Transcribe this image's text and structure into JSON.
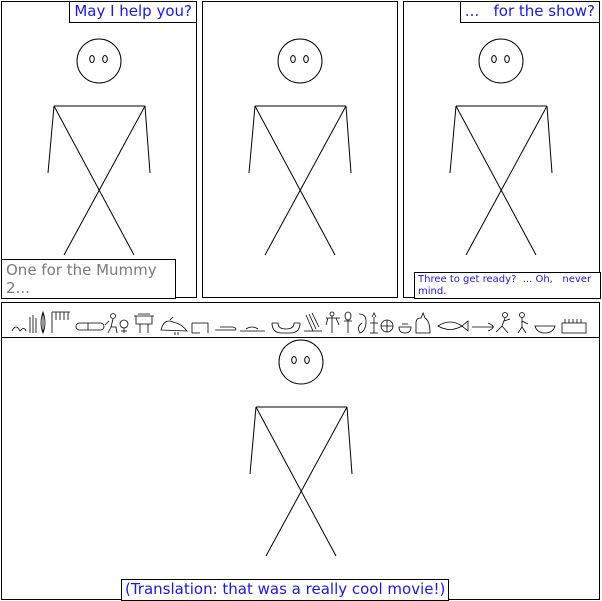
{
  "panels": {
    "p1": {
      "speech": "May I help you?",
      "narration": "One for the Mummy 2..."
    },
    "p3": {
      "speech": "...   for the show?",
      "narration": "Three to get ready?  ... Oh,   never mind."
    },
    "p4": {
      "subtitle": "(Translation: that was a really cool movie!)"
    }
  },
  "hieroglyph_strip": {
    "icon": "egyptian-hieroglyphs-icon",
    "glyph_count": 33
  },
  "colors": {
    "speech_blue": "#1a1ad6",
    "narration_gray": "#7a7a7a",
    "ink": "#000000"
  }
}
